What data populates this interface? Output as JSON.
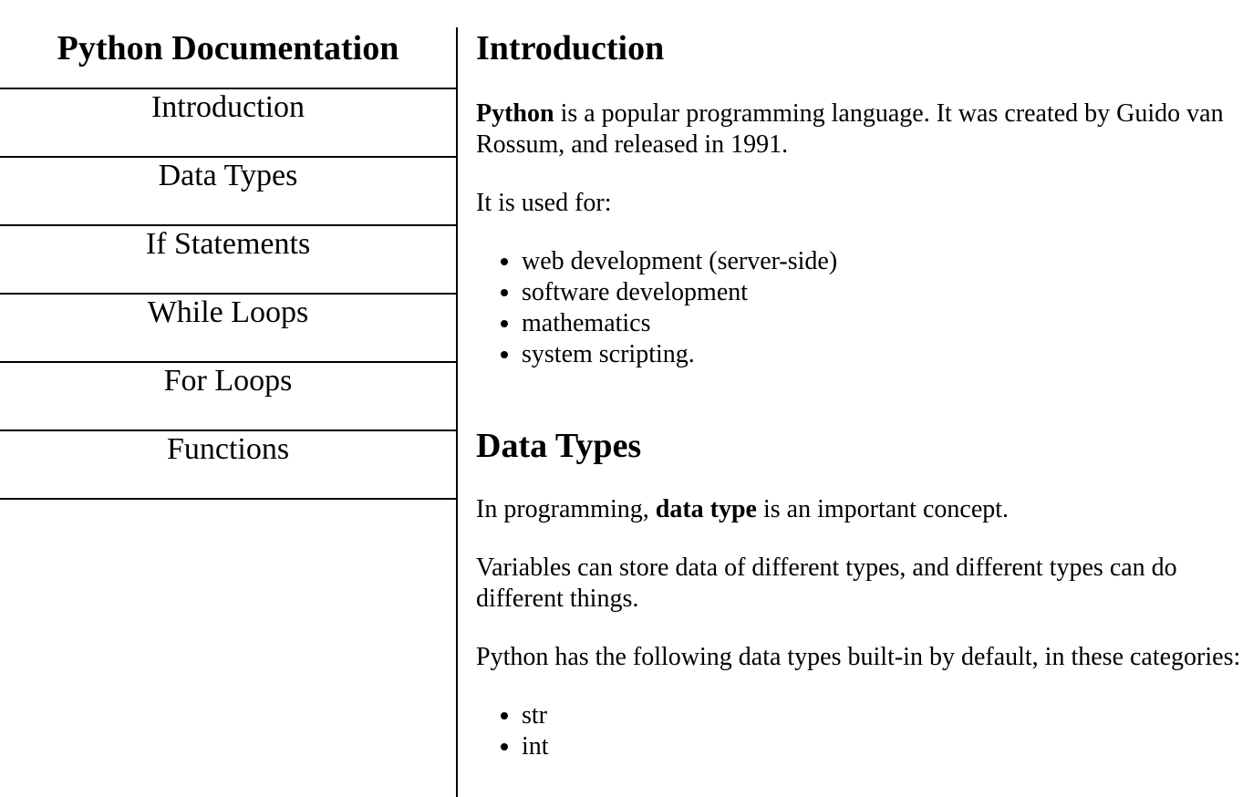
{
  "navbar": {
    "title": "Python Documentation",
    "links": [
      {
        "label": "Introduction"
      },
      {
        "label": "Data Types"
      },
      {
        "label": "If Statements"
      },
      {
        "label": "While Loops"
      },
      {
        "label": "For Loops"
      },
      {
        "label": "Functions"
      }
    ]
  },
  "sections": {
    "introduction": {
      "title": "Introduction",
      "p1_bold": "Python",
      "p1_rest": " is a popular programming language. It was created by Guido van Rossum, and released in 1991.",
      "p2": "It is used for:",
      "items": [
        "web development (server-side)",
        "software development",
        "mathematics",
        "system scripting."
      ]
    },
    "data_types": {
      "title": "Data Types",
      "p1_pre": "In programming, ",
      "p1_bold": "data type",
      "p1_post": " is an important concept.",
      "p2": "Variables can store data of different types, and different types can do different things.",
      "p3": "Python has the following data types built-in by default, in these categories:",
      "items": [
        "str",
        "int"
      ]
    }
  }
}
